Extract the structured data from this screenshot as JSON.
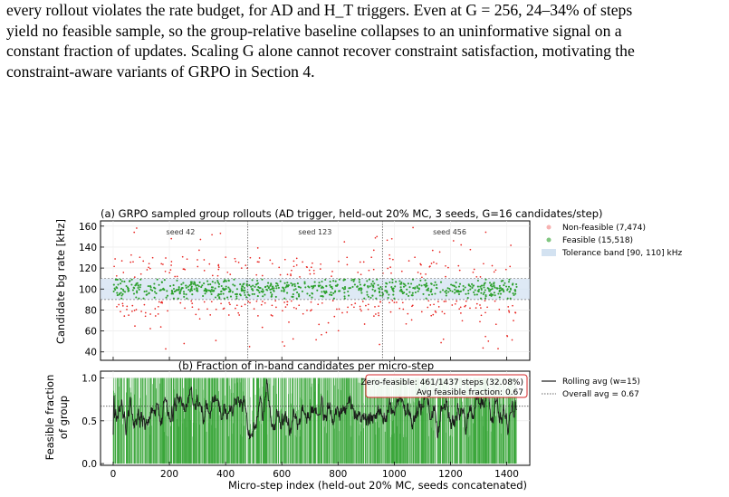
{
  "paragraph": {
    "line1": "every rollout violates the rate budget, for AD and H_T triggers. Even at G = 256, 24–34% of steps",
    "line2": "yield no feasible sample, so the group-relative baseline collapses to an uninformative signal on a",
    "line3": "constant fraction of updates. Scaling G alone cannot recover constraint satisfaction, motivating the",
    "line4": "constraint-aware variants of GRPO in Section 4."
  },
  "colors": {
    "infeasible": "#e8231f",
    "feasible": "#2ca02c",
    "band": "#d3e2f1",
    "bar": "#2ca02c",
    "rolling": "#1a1a1a",
    "annotation_border": "#d62728"
  },
  "chart_data": [
    {
      "type": "scatter",
      "title": "(a) GRPO sampled group rollouts (AD trigger, held-out 20% MC, 3 seeds, G=16 candidates/step)",
      "ylabel": "Candidate bg rate [kHz]",
      "xlim": [
        -45,
        1482
      ],
      "ylim": [
        32,
        165
      ],
      "yticks": [
        "40",
        "60",
        "80",
        "100",
        "120",
        "140",
        "160"
      ],
      "tolerance_band": [
        90,
        110
      ],
      "seed_boundaries": [
        479,
        958
      ],
      "seed_labels": [
        {
          "x": 240,
          "text": "seed 42"
        },
        {
          "x": 718,
          "text": "seed 123"
        },
        {
          "x": 1197,
          "text": "seed 456"
        }
      ],
      "legend": [
        "Non-feasible (7,474)",
        "Feasible (15,518)",
        "Tolerance band [90, 110] kHz"
      ],
      "legend_placement": "outside-right"
    },
    {
      "type": "bar",
      "title": "(b) Fraction of in-band candidates per micro-step",
      "xlabel": "Micro-step index (held-out 20% MC, seeds concatenated)",
      "ylabel_line1": "Feasible fraction",
      "ylabel_line2": "of group",
      "xlim": [
        -45,
        1482
      ],
      "ylim": [
        -0.02,
        1.08
      ],
      "xticks": [
        "0",
        "200",
        "400",
        "600",
        "800",
        "1000",
        "1200",
        "1400"
      ],
      "yticks": [
        "0.0",
        "0.5",
        "1.0"
      ],
      "overall_avg": 0.67,
      "n_steps": 1437,
      "annotation_line1": "Zero-feasible: 461/1437 steps (32.08%)",
      "annotation_line2": "Avg feasible fraction: 0.67",
      "legend": [
        "Rolling avg (w=15)",
        "Overall avg = 0.67"
      ],
      "legend_placement": "outside-right"
    }
  ]
}
